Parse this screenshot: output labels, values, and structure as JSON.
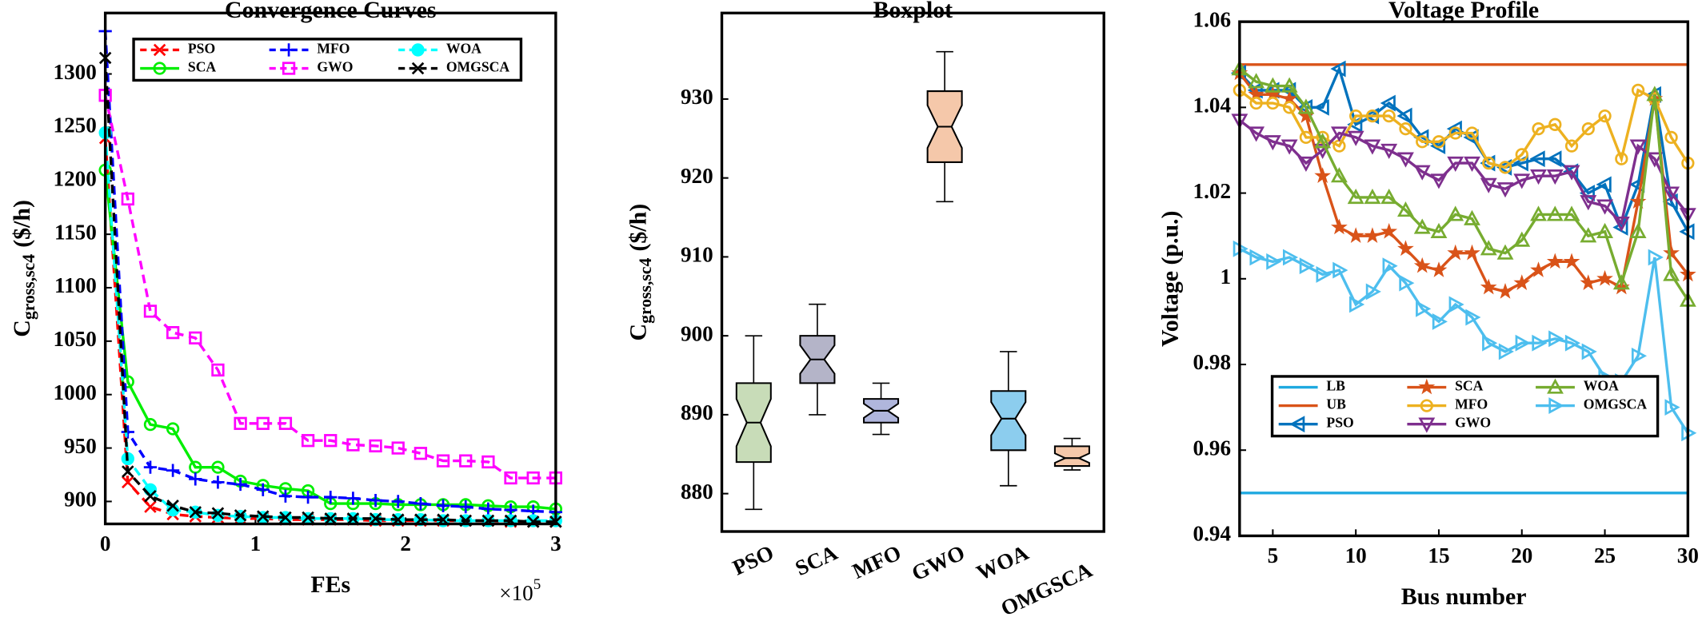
{
  "chart_data": [
    {
      "type": "line",
      "title": "Convergence Curves",
      "xlabel": "FEs",
      "ylabel": {
        "main": "C",
        "sub": "gross,sc4",
        "unit": "($/h)"
      },
      "x_multiplier": {
        "base": "×10",
        "exponent": "5"
      },
      "x": [
        0,
        0.15,
        0.3,
        0.45,
        0.6,
        0.75,
        0.9,
        1.05,
        1.2,
        1.35,
        1.5,
        1.65,
        1.8,
        1.95,
        2.1,
        2.25,
        2.4,
        2.55,
        2.7,
        2.85,
        3.0
      ],
      "xlim": [
        0,
        3
      ],
      "xticks": [
        0,
        1,
        2,
        3
      ],
      "ylim": [
        879,
        1357
      ],
      "yticks": [
        900,
        950,
        1000,
        1050,
        1100,
        1150,
        1200,
        1250,
        1300
      ],
      "legend": "upper right",
      "legend_columns": 3,
      "series": [
        {
          "name": "PSO",
          "color": "#ff0000",
          "marker": "x",
          "dashed": true,
          "values": [
            1240,
            918,
            895,
            888,
            886,
            885,
            884,
            884,
            883,
            883,
            883,
            883,
            882,
            882,
            882,
            882,
            882,
            882,
            881,
            881,
            881
          ]
        },
        {
          "name": "SCA",
          "color": "#00ee00",
          "marker": "circle",
          "dashed": false,
          "values": [
            1210,
            1012,
            972,
            968,
            932,
            932,
            919,
            915,
            912,
            910,
            898,
            898,
            898,
            897,
            897,
            897,
            897,
            896,
            895,
            895,
            893
          ]
        },
        {
          "name": "MFO",
          "color": "#0000ff",
          "marker": "plus",
          "dashed": true,
          "values": [
            1340,
            965,
            932,
            929,
            921,
            918,
            916,
            911,
            905,
            904,
            904,
            903,
            901,
            900,
            898,
            896,
            895,
            893,
            892,
            891,
            890
          ]
        },
        {
          "name": "GWO",
          "color": "#ff00ff",
          "marker": "square",
          "dashed": true,
          "values": [
            1280,
            1183,
            1078,
            1058,
            1053,
            1023,
            973,
            973,
            973,
            957,
            957,
            953,
            952,
            950,
            945,
            938,
            938,
            937,
            922,
            922,
            922
          ]
        },
        {
          "name": "WOA",
          "color": "#00ffff",
          "marker": "dot",
          "dashed": true,
          "values": [
            1245,
            940,
            911,
            892,
            890,
            887,
            886,
            885,
            885,
            884,
            884,
            884,
            883,
            883,
            883,
            882,
            882,
            882,
            882,
            882,
            882
          ]
        },
        {
          "name": "OMGSCA",
          "color": "#000000",
          "marker": "x",
          "dashed": true,
          "values": [
            1315,
            928,
            905,
            896,
            890,
            889,
            887,
            886,
            885,
            885,
            884,
            884,
            884,
            883,
            883,
            883,
            882,
            882,
            882,
            881,
            881
          ]
        }
      ]
    },
    {
      "type": "box",
      "title": "Boxplot",
      "ylabel": {
        "main": "C",
        "sub": "gross,sc4",
        "unit": "($/h)"
      },
      "categories": [
        "PSO",
        "SCA",
        "MFO",
        "GWO",
        "WOA",
        "OMGSCA"
      ],
      "colors": [
        "#c8dcb8",
        "#b4b4c8",
        "#b0b6dc",
        "#f5c8aa",
        "#8ccdee",
        "#f5c8aa"
      ],
      "stats": [
        {
          "min": 878,
          "q1": 884,
          "median": 889,
          "q3": 894,
          "max": 900
        },
        {
          "min": 890,
          "q1": 894,
          "median": 897,
          "q3": 900,
          "max": 904
        },
        {
          "min": 887.5,
          "q1": 889,
          "median": 890.5,
          "q3": 892,
          "max": 894
        },
        {
          "min": 917,
          "q1": 922,
          "median": 926.5,
          "q3": 931,
          "max": 936
        },
        {
          "min": 881,
          "q1": 885.5,
          "median": 889.5,
          "q3": 893,
          "max": 898
        },
        {
          "min": 883,
          "q1": 883.5,
          "median": 884.5,
          "q3": 886,
          "max": 887
        }
      ],
      "ylim": [
        875.2,
        940.9
      ],
      "yticks": [
        880,
        890,
        900,
        910,
        920,
        930
      ]
    },
    {
      "type": "line",
      "title": "Voltage Profile",
      "xlabel": "Bus number",
      "ylabel": {
        "main": "Voltage (p.u.)"
      },
      "x": [
        3,
        4,
        5,
        6,
        7,
        8,
        9,
        10,
        11,
        12,
        13,
        14,
        15,
        16,
        17,
        18,
        19,
        20,
        21,
        22,
        23,
        24,
        25,
        26,
        27,
        28,
        29,
        30
      ],
      "xlim": [
        3,
        30
      ],
      "xticks": [
        5,
        10,
        15,
        20,
        25,
        30
      ],
      "ylim": [
        0.94,
        1.06
      ],
      "yticks": [
        0.94,
        0.96,
        0.98,
        1,
        1.02,
        1.04,
        1.06
      ],
      "legend": "lower left",
      "legend_columns": 3,
      "series": [
        {
          "name": "LB",
          "color": "#1fa9e0",
          "marker": "none",
          "dashed": false,
          "values": [
            0.95,
            0.95,
            0.95,
            0.95,
            0.95,
            0.95,
            0.95,
            0.95,
            0.95,
            0.95,
            0.95,
            0.95,
            0.95,
            0.95,
            0.95,
            0.95,
            0.95,
            0.95,
            0.95,
            0.95,
            0.95,
            0.95,
            0.95,
            0.95,
            0.95,
            0.95,
            0.95,
            0.95
          ]
        },
        {
          "name": "UB",
          "color": "#d95319",
          "marker": "none",
          "dashed": false,
          "values": [
            1.05,
            1.05,
            1.05,
            1.05,
            1.05,
            1.05,
            1.05,
            1.05,
            1.05,
            1.05,
            1.05,
            1.05,
            1.05,
            1.05,
            1.05,
            1.05,
            1.05,
            1.05,
            1.05,
            1.05,
            1.05,
            1.05,
            1.05,
            1.05,
            1.05,
            1.05,
            1.05,
            1.05
          ]
        },
        {
          "name": "PSO",
          "color": "#0072bd",
          "marker": "tri-left",
          "dashed": false,
          "values": [
            1.048,
            1.044,
            1.044,
            1.044,
            1.04,
            1.04,
            1.049,
            1.036,
            1.038,
            1.041,
            1.038,
            1.033,
            1.031,
            1.035,
            1.033,
            1.027,
            1.026,
            1.027,
            1.028,
            1.028,
            1.025,
            1.02,
            1.022,
            1.012,
            1.022,
            1.043,
            1.018,
            1.011
          ]
        },
        {
          "name": "SCA",
          "color": "#d95319",
          "marker": "star",
          "dashed": false,
          "values": [
            1.048,
            1.043,
            1.043,
            1.042,
            1.038,
            1.024,
            1.012,
            1.01,
            1.01,
            1.011,
            1.007,
            1.003,
            1.002,
            1.006,
            1.006,
            0.998,
            0.997,
            0.999,
            1.002,
            1.004,
            1.004,
            0.999,
            1.0,
            0.998,
            1.018,
            1.042,
            1.006,
            1.001
          ]
        },
        {
          "name": "MFO",
          "color": "#edb120",
          "marker": "circle",
          "dashed": false,
          "values": [
            1.044,
            1.041,
            1.041,
            1.04,
            1.033,
            1.033,
            1.031,
            1.038,
            1.038,
            1.038,
            1.035,
            1.032,
            1.032,
            1.034,
            1.034,
            1.027,
            1.026,
            1.029,
            1.035,
            1.036,
            1.031,
            1.035,
            1.038,
            1.028,
            1.044,
            1.042,
            1.033,
            1.027
          ]
        },
        {
          "name": "GWO",
          "color": "#7e2f8e",
          "marker": "tri-down",
          "dashed": false,
          "values": [
            1.037,
            1.034,
            1.032,
            1.031,
            1.027,
            1.03,
            1.034,
            1.033,
            1.031,
            1.03,
            1.028,
            1.025,
            1.023,
            1.027,
            1.027,
            1.022,
            1.021,
            1.023,
            1.024,
            1.024,
            1.025,
            1.018,
            1.017,
            1.013,
            1.031,
            1.028,
            1.02,
            1.015
          ]
        },
        {
          "name": "WOA",
          "color": "#77ac30",
          "marker": "tri-up",
          "dashed": false,
          "values": [
            1.049,
            1.046,
            1.045,
            1.045,
            1.04,
            1.032,
            1.024,
            1.019,
            1.019,
            1.019,
            1.016,
            1.012,
            1.011,
            1.015,
            1.014,
            1.007,
            1.006,
            1.009,
            1.015,
            1.015,
            1.015,
            1.01,
            1.011,
            0.999,
            1.011,
            1.043,
            1.001,
            0.995
          ]
        },
        {
          "name": "OMGSCA",
          "color": "#4dbeee",
          "marker": "tri-right",
          "dashed": false,
          "values": [
            1.007,
            1.005,
            1.004,
            1.005,
            1.003,
            1.001,
            1.002,
            0.994,
            0.997,
            1.003,
            0.999,
            0.993,
            0.99,
            0.994,
            0.991,
            0.985,
            0.983,
            0.985,
            0.985,
            0.986,
            0.985,
            0.983,
            0.977,
            0.976,
            0.982,
            1.005,
            0.97,
            0.964
          ]
        }
      ]
    }
  ]
}
